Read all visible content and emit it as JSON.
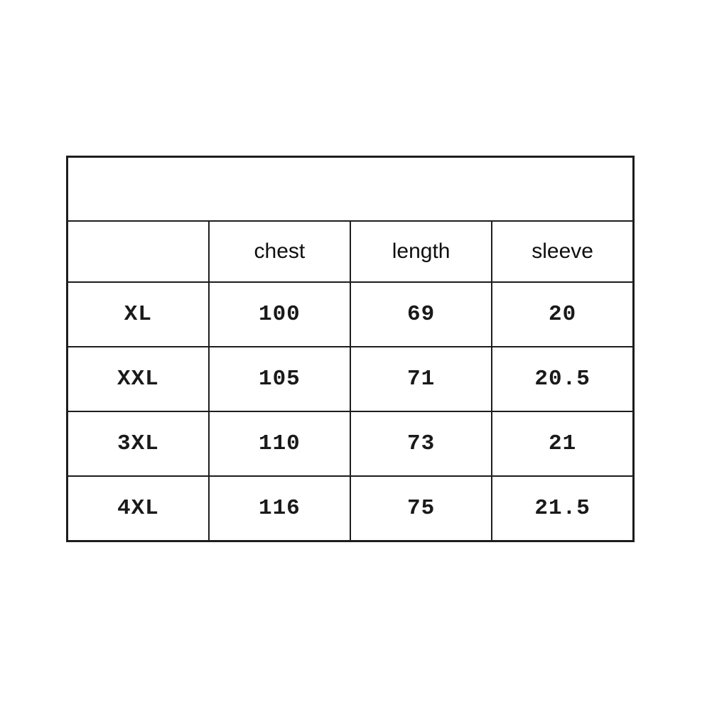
{
  "chart_data": {
    "type": "table",
    "title": "",
    "columns": [
      "",
      "chest",
      "length",
      "sleeve"
    ],
    "rows": [
      {
        "size": "XL",
        "chest": 100,
        "length": 69,
        "sleeve": 20
      },
      {
        "size": "XXL",
        "chest": 105,
        "length": 71,
        "sleeve": 20.5
      },
      {
        "size": "3XL",
        "chest": 110,
        "length": 73,
        "sleeve": 21
      },
      {
        "size": "4XL",
        "chest": 116,
        "length": 75,
        "sleeve": 21.5
      }
    ],
    "layout_hints": {
      "top_banner_row": "empty full-width cell above header",
      "grid": "on",
      "border_color": "#1d1d1d",
      "background": "#ffffff"
    }
  },
  "table": {
    "top_banner": "",
    "header_row": [
      "",
      "chest",
      "length",
      "sleeve"
    ],
    "body_rows": [
      [
        "XL",
        "100",
        "69",
        "20"
      ],
      [
        "XXL",
        "105",
        "71",
        "20.5"
      ],
      [
        "3XL",
        "110",
        "73",
        "21"
      ],
      [
        "4XL",
        "116",
        "75",
        "21.5"
      ]
    ]
  },
  "colors": {
    "border": "#1d1d1d",
    "header_text": "#0f0f0f",
    "data_text": "#1a1a1a",
    "background": "#ffffff"
  }
}
